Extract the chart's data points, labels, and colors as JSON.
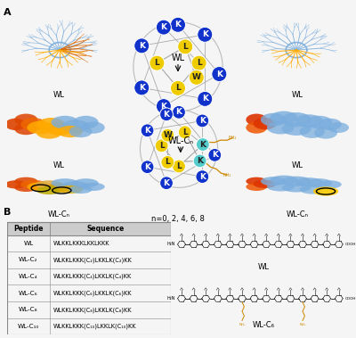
{
  "panel_a_label": "A",
  "panel_b_label": "B",
  "bg_color": "#f5f5f5",
  "table_header": [
    "Peptide",
    "Sequence"
  ],
  "table_rows": [
    [
      "WL",
      "WLKKLKKKLKKLKKK"
    ],
    [
      "WL-C₂",
      "WLKKLKKK(C₂)LKKLK(C₂)KK"
    ],
    [
      "WL-C₄",
      "WLKKLKKK(C₄)LKKLK(C₄)KK"
    ],
    [
      "WL-C₆",
      "WLKKLKKK(C₆)LKKLK(C₆)KK"
    ],
    [
      "WL-C₈",
      "WLKKLKKK(C₈)LKKLK(C₈)KK"
    ],
    [
      "WL-C₁₀",
      "WLKKLKKK(C₁₀)LKKLK(C₁₀)KK"
    ]
  ],
  "label_wl_top_left": "WL",
  "label_wl_top_right": "WL",
  "label_wl_mid_left": "WL",
  "label_wl_mid_right": "WL",
  "label_wlcn_bot_left": "WL-Cₙ",
  "label_wlcn_bot_right": "WL-Cₙ",
  "label_wl_wheel": "WL",
  "label_wlcn_wheel": "WL-Cₙ",
  "label_n_values": "n=0, 2, 4, 6, 8",
  "label_wl_chem": "WL",
  "label_wlc6_chem": "WL-C₆",
  "table_header_bg": "#cccccc",
  "table_border_color": "#888888",
  "image_bg_dark": "#0a0a1a",
  "mol_blue": "#7aaddd",
  "mol_orange": "#dd6600",
  "mol_yellow": "#ffaa00",
  "mol_red": "#cc2200",
  "mol_surf_blue": "#7aaddd",
  "mol_surf_orange": "#dd6600",
  "mol_surf_yellow": "#ffaa00",
  "mol_surf_red": "#cc2200",
  "wheel_blue": "#1133cc",
  "wheel_yellow": "#eecc00",
  "wheel_cyan": "#55cccc",
  "lipid_orange": "#cc8800",
  "wheel_line_color": "#aaaaaa"
}
